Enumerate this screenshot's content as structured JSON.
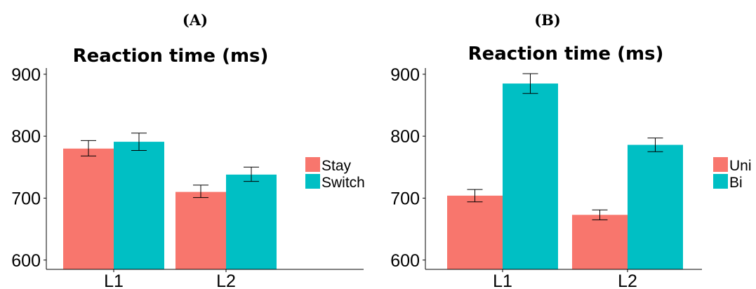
{
  "colors": {
    "series1": "#F8766D",
    "series2": "#00BFC4"
  },
  "chart_data": [
    {
      "type": "bar",
      "panel_label": "(A)",
      "title": "Reaction time (ms)",
      "xlabel": "",
      "ylabel": "",
      "categories": [
        "L1",
        "L2"
      ],
      "ylim": [
        585,
        910
      ],
      "yticks": [
        600,
        700,
        800,
        900
      ],
      "grid": false,
      "legend_position": "right",
      "series": [
        {
          "name": "Stay",
          "color": "#F8766D",
          "values": [
            780,
            710
          ],
          "err_low": [
            768,
            701
          ],
          "err_high": [
            793,
            721
          ]
        },
        {
          "name": "Switch",
          "color": "#00BFC4",
          "values": [
            791,
            738
          ],
          "err_low": [
            777,
            727
          ],
          "err_high": [
            805,
            750
          ]
        }
      ]
    },
    {
      "type": "bar",
      "panel_label": "(B)",
      "title": "Reaction time (ms)",
      "xlabel": "",
      "ylabel": "",
      "categories": [
        "L1",
        "L2"
      ],
      "ylim": [
        585,
        910
      ],
      "yticks": [
        600,
        700,
        800,
        900
      ],
      "grid": false,
      "legend_position": "right",
      "series": [
        {
          "name": "Uni",
          "color": "#F8766D",
          "values": [
            704,
            673
          ],
          "err_low": [
            694,
            665
          ],
          "err_high": [
            714,
            681
          ]
        },
        {
          "name": "Bi",
          "color": "#00BFC4",
          "values": [
            885,
            786
          ],
          "err_low": [
            869,
            775
          ],
          "err_high": [
            901,
            797
          ]
        }
      ]
    }
  ]
}
